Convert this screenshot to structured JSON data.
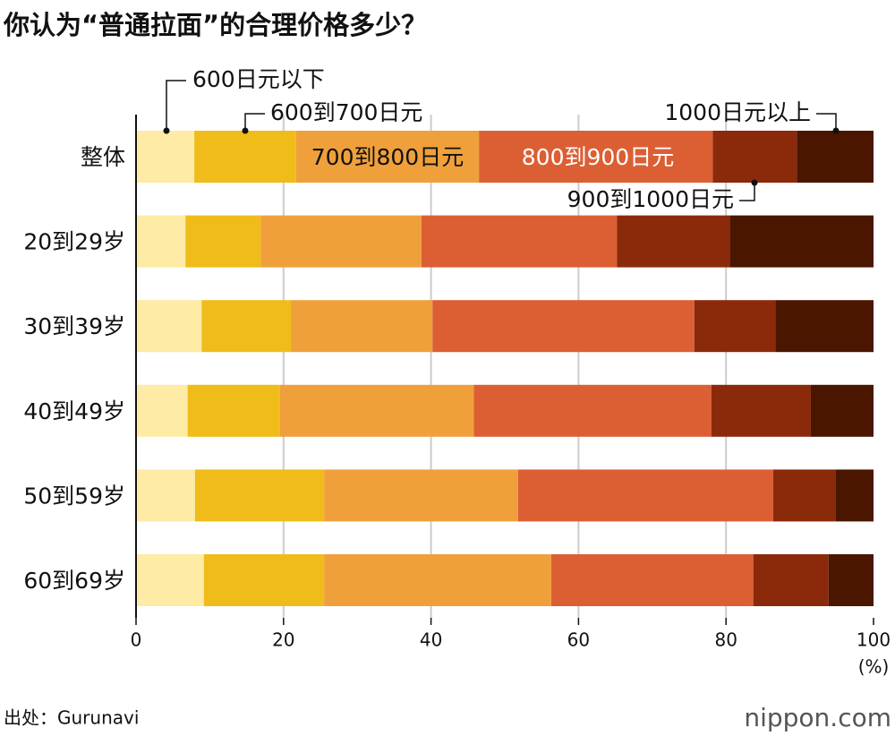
{
  "chart_data": {
    "type": "stacked-barh",
    "title": "你认为“普通拉面”的合理价格多少？",
    "categories": [
      "整体",
      "20到29岁",
      "30到39岁",
      "40到49岁",
      "50到59岁",
      "60到69岁"
    ],
    "series": [
      {
        "name": "600日元以下",
        "color": "#fdeba6",
        "values": [
          7.9,
          6.7,
          8.9,
          7.0,
          8.0,
          9.2
        ]
      },
      {
        "name": "600到700日元",
        "color": "#f0bc1a",
        "values": [
          13.8,
          10.2,
          12.1,
          12.5,
          17.5,
          16.3
        ]
      },
      {
        "name": "700到800日元",
        "color": "#f0a03b",
        "values": [
          24.8,
          21.8,
          19.2,
          26.3,
          26.3,
          30.8
        ]
      },
      {
        "name": "800到900日元",
        "color": "#dc5f34",
        "values": [
          31.7,
          26.5,
          35.5,
          32.2,
          34.6,
          27.4
        ]
      },
      {
        "name": "900到1000日元",
        "color": "#8b2a0a",
        "values": [
          11.4,
          15.3,
          11.0,
          13.5,
          8.5,
          10.2
        ]
      },
      {
        "name": "1000日元以上",
        "color": "#4a1600",
        "values": [
          10.4,
          19.5,
          13.3,
          8.5,
          5.1,
          6.1
        ]
      }
    ],
    "xlim": [
      0,
      100
    ],
    "xticks": [
      0,
      20,
      40,
      60,
      80,
      100
    ],
    "xlabel": "(%)",
    "grid": true,
    "source": "出处：Gurunavi",
    "logo": "nippon.com"
  }
}
